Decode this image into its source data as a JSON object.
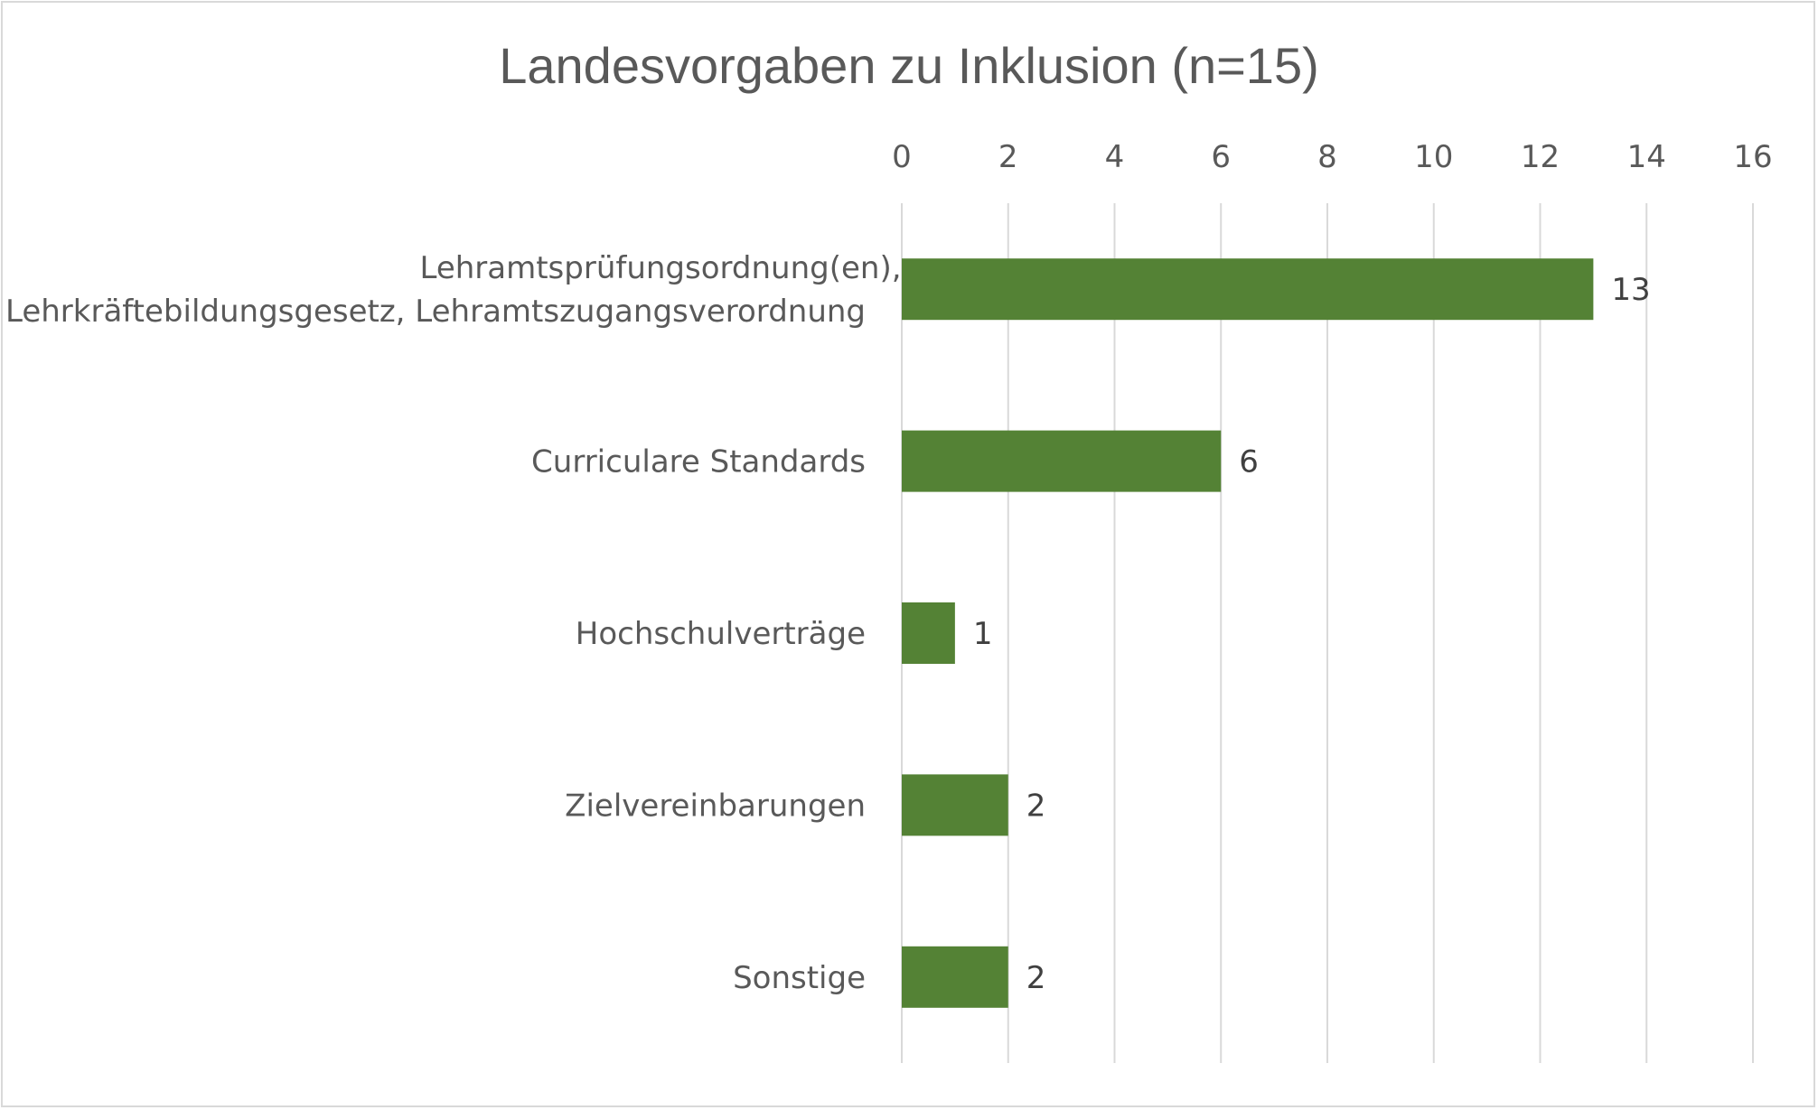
{
  "chart_data": {
    "type": "bar",
    "orientation": "horizontal",
    "title": "Landesvorgaben zu Inklusion (n=15)",
    "categories": [
      [
        "Lehramtsprüfungsordnung(en),",
        "Lehrkräftebildungsgesetz, Lehramtszugangsverordnung"
      ],
      [
        "Curriculare Standards"
      ],
      [
        "Hochschulverträge"
      ],
      [
        "Zielvereinbarungen"
      ],
      [
        "Sonstige"
      ]
    ],
    "values": [
      13,
      6,
      1,
      2,
      2
    ],
    "xlim": [
      0,
      16
    ],
    "x_ticks": [
      0,
      2,
      4,
      6,
      8,
      10,
      12,
      14,
      16
    ],
    "x_axis_position": "top",
    "grid": true,
    "legend": "none",
    "data_labels": true,
    "colors": {
      "bar": "#548235",
      "grid": "#d9d9d9",
      "text": "#595959",
      "data_label": "#404040",
      "border": "#d9d9d9"
    }
  }
}
